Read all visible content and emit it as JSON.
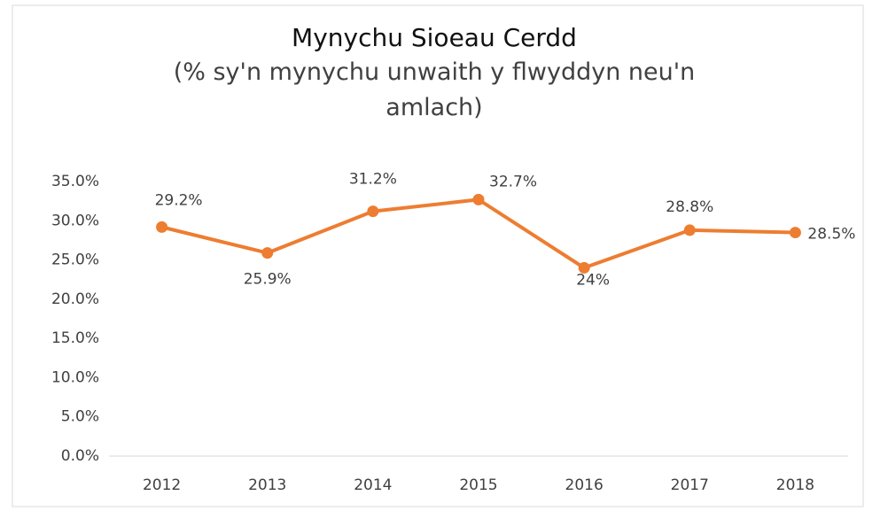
{
  "chart_data": {
    "type": "line",
    "title": "Mynychu Sioeau Cerdd",
    "subtitle": "(% sy'n mynychu unwaith y flwyddyn neu'n amlach)",
    "categories": [
      "2012",
      "2013",
      "2014",
      "2015",
      "2016",
      "2017",
      "2018"
    ],
    "values": [
      29.2,
      25.9,
      31.2,
      32.7,
      24,
      28.8,
      28.5
    ],
    "value_labels": [
      "29.2%",
      "25.9%",
      "31.2%",
      "32.7%",
      "24%",
      "28.8%",
      "28.5%"
    ],
    "color": "#ED7D31",
    "ylim": [
      0,
      35
    ],
    "yticks": [
      {
        "value": 0,
        "label": "0.0%"
      },
      {
        "value": 5,
        "label": "5.0%"
      },
      {
        "value": 10,
        "label": "10.0%"
      },
      {
        "value": 15,
        "label": "15.0%"
      },
      {
        "value": 20,
        "label": "20.0%"
      },
      {
        "value": 25,
        "label": "25.0%"
      },
      {
        "value": 30,
        "label": "30.0%"
      },
      {
        "value": 35,
        "label": "35.0%"
      }
    ],
    "grid": false
  }
}
